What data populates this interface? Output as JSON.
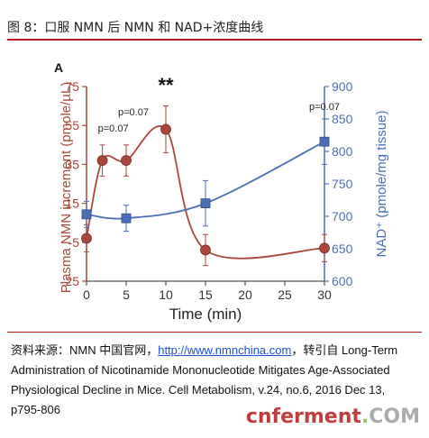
{
  "figure_title": "图 8：口服 NMN 后 NMN 和 NAD+浓度曲线",
  "panel_label": "A",
  "significance_mark": "**",
  "source": {
    "prefix": "资料来源：NMN 中国官网，",
    "link": "http://www.nmnchina.com",
    "suffix": "，转引自 Long-Term Administration of Nicotinamide Mononucleotide Mitigates Age-Associated Physiological Decline in Mice. Cell Metabolism, v.24, no.6, 2016 Dec 13, p795-806"
  },
  "watermark": {
    "main": "cnferment",
    "dot": ".",
    "tld": "COM"
  },
  "colors": {
    "nmn": "#a9473a",
    "nad": "#4a6fb5",
    "rule": "#b71c1c"
  },
  "chart_data": {
    "type": "line",
    "xlabel": "Time (min)",
    "ylabel_left": "Plasma NMN increment (pmole/µL)",
    "ylabel_right": "NAD⁺ (pmole/mg tissue)",
    "xlim": [
      0,
      30
    ],
    "ylim_left": [
      -25,
      75
    ],
    "ylim_right": [
      600,
      900
    ],
    "x_ticks": [
      0,
      5,
      10,
      15,
      20,
      25,
      30
    ],
    "y_ticks_left": [
      -25,
      -5,
      15,
      35,
      55,
      75
    ],
    "y_ticks_right": [
      600,
      650,
      700,
      750,
      800,
      850,
      900
    ],
    "grid": false,
    "series": [
      {
        "axis": "left",
        "points": [
          {
            "x": 0,
            "y": -3,
            "err": 7
          },
          {
            "x": 2,
            "y": 37,
            "err": 8
          },
          {
            "x": 5,
            "y": 37,
            "err": 8
          },
          {
            "x": 10,
            "y": 53,
            "err": 12
          },
          {
            "x": 15,
            "y": -9,
            "err": 8
          },
          {
            "x": 30,
            "y": -8,
            "err": 7
          }
        ]
      },
      {
        "axis": "right",
        "points": [
          {
            "x": 0,
            "y": 703,
            "err": 20
          },
          {
            "x": 5,
            "y": 697,
            "err": 20
          },
          {
            "x": 15,
            "y": 720,
            "err": 35
          },
          {
            "x": 30,
            "y": 815,
            "err": 35
          }
        ]
      }
    ],
    "annotations": [
      {
        "text": "p=0.07",
        "x": 2
      },
      {
        "text": "p=0.07",
        "x": 5
      },
      {
        "text": "p=0.07",
        "x": 30
      },
      {
        "text": "**",
        "x": 10
      }
    ]
  }
}
